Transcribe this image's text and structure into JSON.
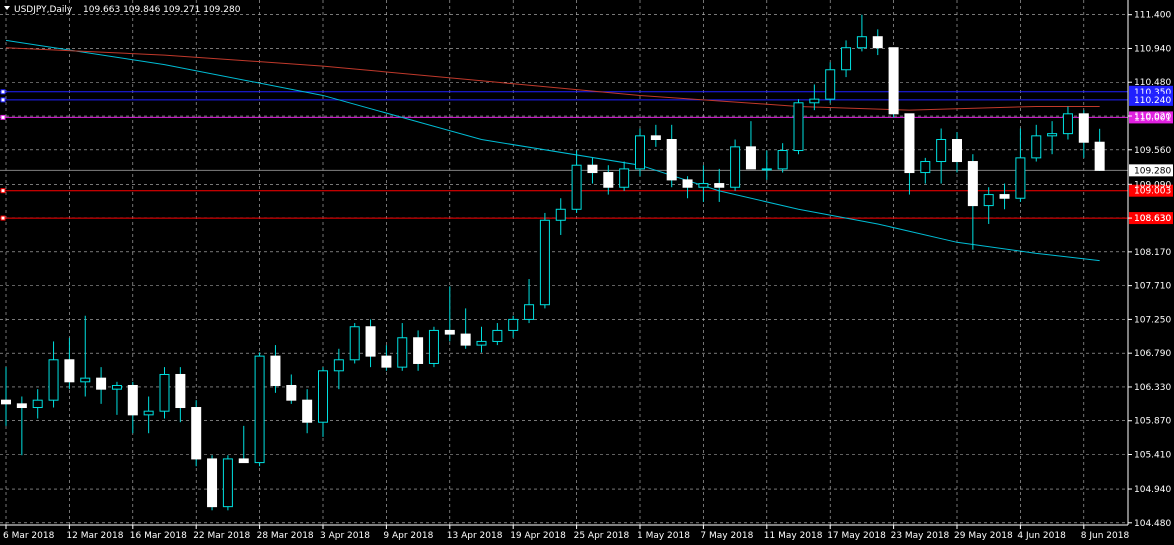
{
  "header": {
    "symbol": "USDJPY,Daily",
    "ohlc": "109.663 109.846 109.271 109.280"
  },
  "colors": {
    "background": "#000000",
    "grid": "#c0c0c0",
    "axis": "#ffffff",
    "bull_candle": "#000000",
    "bull_outline": "#00e0e0",
    "bear_candle": "#ffffff",
    "wick": "#00e0e0",
    "ma_slow": "#00bcd4",
    "ma_fast": "#c0392b",
    "level_red": "#ff0000",
    "level_magenta": "#e020e0",
    "level_blue": "#2020ff",
    "current_price_line": "#808080"
  },
  "chart_data": {
    "type": "candlestick",
    "title": "USDJPY,Daily",
    "ylim": [
      104.45,
      111.6
    ],
    "y_ticks": [
      "111.400",
      "110.940",
      "110.480",
      "110.020",
      "109.560",
      "109.090",
      "108.630",
      "108.170",
      "107.710",
      "107.250",
      "106.790",
      "106.330",
      "105.870",
      "105.410",
      "104.940",
      "104.480"
    ],
    "x_tick_labels": [
      "6 Mar 2018",
      "12 Mar 2018",
      "16 Mar 2018",
      "22 Mar 2018",
      "28 Mar 2018",
      "3 Apr 2018",
      "9 Apr 2018",
      "13 Apr 2018",
      "19 Apr 2018",
      "25 Apr 2018",
      "1 May 2018",
      "7 May 2018",
      "11 May 2018",
      "17 May 2018",
      "23 May 2018",
      "29 May 2018",
      "4 Jun 2018",
      "8 Jun 2018"
    ],
    "candles": [
      {
        "o": 106.15,
        "h": 106.6,
        "l": 105.8,
        "c": 106.1
      },
      {
        "o": 106.1,
        "h": 106.2,
        "l": 105.4,
        "c": 106.05
      },
      {
        "o": 106.05,
        "h": 106.3,
        "l": 105.9,
        "c": 106.15
      },
      {
        "o": 106.15,
        "h": 106.95,
        "l": 106.05,
        "c": 106.7
      },
      {
        "o": 106.7,
        "h": 107.0,
        "l": 106.3,
        "c": 106.4
      },
      {
        "o": 106.4,
        "h": 107.3,
        "l": 106.2,
        "c": 106.45
      },
      {
        "o": 106.45,
        "h": 106.6,
        "l": 106.1,
        "c": 106.3
      },
      {
        "o": 106.3,
        "h": 106.4,
        "l": 105.95,
        "c": 106.35
      },
      {
        "o": 106.35,
        "h": 106.4,
        "l": 105.7,
        "c": 105.95
      },
      {
        "o": 105.95,
        "h": 106.2,
        "l": 105.7,
        "c": 106.0
      },
      {
        "o": 106.0,
        "h": 106.6,
        "l": 105.9,
        "c": 106.5
      },
      {
        "o": 106.5,
        "h": 106.6,
        "l": 105.85,
        "c": 106.05
      },
      {
        "o": 106.05,
        "h": 106.15,
        "l": 105.25,
        "c": 105.35
      },
      {
        "o": 105.35,
        "h": 105.4,
        "l": 104.65,
        "c": 104.7
      },
      {
        "o": 104.7,
        "h": 105.4,
        "l": 104.65,
        "c": 105.35
      },
      {
        "o": 105.35,
        "h": 105.8,
        "l": 105.3,
        "c": 105.3
      },
      {
        "o": 105.3,
        "h": 106.8,
        "l": 105.25,
        "c": 106.75
      },
      {
        "o": 106.75,
        "h": 106.9,
        "l": 106.25,
        "c": 106.35
      },
      {
        "o": 106.35,
        "h": 106.5,
        "l": 106.1,
        "c": 106.15
      },
      {
        "o": 106.15,
        "h": 106.3,
        "l": 105.7,
        "c": 105.85
      },
      {
        "o": 105.85,
        "h": 106.6,
        "l": 105.65,
        "c": 106.55
      },
      {
        "o": 106.55,
        "h": 106.85,
        "l": 106.3,
        "c": 106.7
      },
      {
        "o": 106.7,
        "h": 107.2,
        "l": 106.65,
        "c": 107.15
      },
      {
        "o": 107.15,
        "h": 107.25,
        "l": 106.6,
        "c": 106.75
      },
      {
        "o": 106.75,
        "h": 106.9,
        "l": 106.55,
        "c": 106.6
      },
      {
        "o": 106.6,
        "h": 107.2,
        "l": 106.55,
        "c": 107.0
      },
      {
        "o": 107.0,
        "h": 107.1,
        "l": 106.55,
        "c": 106.65
      },
      {
        "o": 106.65,
        "h": 107.15,
        "l": 106.6,
        "c": 107.1
      },
      {
        "o": 107.1,
        "h": 107.7,
        "l": 106.95,
        "c": 107.05
      },
      {
        "o": 107.05,
        "h": 107.4,
        "l": 106.85,
        "c": 106.9
      },
      {
        "o": 106.9,
        "h": 107.15,
        "l": 106.8,
        "c": 106.95
      },
      {
        "o": 106.95,
        "h": 107.2,
        "l": 106.9,
        "c": 107.1
      },
      {
        "o": 107.1,
        "h": 107.3,
        "l": 107.0,
        "c": 107.25
      },
      {
        "o": 107.25,
        "h": 107.8,
        "l": 107.2,
        "c": 107.45
      },
      {
        "o": 107.45,
        "h": 108.7,
        "l": 107.4,
        "c": 108.6
      },
      {
        "o": 108.6,
        "h": 108.9,
        "l": 108.4,
        "c": 108.75
      },
      {
        "o": 108.75,
        "h": 109.55,
        "l": 108.7,
        "c": 109.35
      },
      {
        "o": 109.35,
        "h": 109.45,
        "l": 109.1,
        "c": 109.25
      },
      {
        "o": 109.25,
        "h": 109.35,
        "l": 108.95,
        "c": 109.05
      },
      {
        "o": 109.05,
        "h": 109.4,
        "l": 109.0,
        "c": 109.3
      },
      {
        "o": 109.3,
        "h": 109.85,
        "l": 109.2,
        "c": 109.75
      },
      {
        "o": 109.75,
        "h": 109.9,
        "l": 109.6,
        "c": 109.7
      },
      {
        "o": 109.7,
        "h": 109.9,
        "l": 109.05,
        "c": 109.15
      },
      {
        "o": 109.15,
        "h": 109.2,
        "l": 108.9,
        "c": 109.05
      },
      {
        "o": 109.05,
        "h": 109.35,
        "l": 108.85,
        "c": 109.1
      },
      {
        "o": 109.1,
        "h": 109.3,
        "l": 108.85,
        "c": 109.05
      },
      {
        "o": 109.05,
        "h": 109.7,
        "l": 109.0,
        "c": 109.6
      },
      {
        "o": 109.6,
        "h": 109.95,
        "l": 109.3,
        "c": 109.3
      },
      {
        "o": 109.3,
        "h": 109.55,
        "l": 109.15,
        "c": 109.3
      },
      {
        "o": 109.3,
        "h": 109.65,
        "l": 109.25,
        "c": 109.55
      },
      {
        "o": 109.55,
        "h": 110.25,
        "l": 109.5,
        "c": 110.2
      },
      {
        "o": 110.2,
        "h": 110.45,
        "l": 110.1,
        "c": 110.25
      },
      {
        "o": 110.25,
        "h": 110.75,
        "l": 110.2,
        "c": 110.65
      },
      {
        "o": 110.65,
        "h": 111.05,
        "l": 110.55,
        "c": 110.95
      },
      {
        "o": 110.95,
        "h": 111.4,
        "l": 110.9,
        "c": 111.1
      },
      {
        "o": 111.1,
        "h": 111.2,
        "l": 110.85,
        "c": 110.95
      },
      {
        "o": 110.95,
        "h": 110.95,
        "l": 110.0,
        "c": 110.05
      },
      {
        "o": 110.05,
        "h": 110.05,
        "l": 108.95,
        "c": 109.25
      },
      {
        "o": 109.25,
        "h": 109.45,
        "l": 109.1,
        "c": 109.4
      },
      {
        "o": 109.4,
        "h": 109.85,
        "l": 109.1,
        "c": 109.7
      },
      {
        "o": 109.7,
        "h": 109.8,
        "l": 109.25,
        "c": 109.4
      },
      {
        "o": 109.4,
        "h": 109.5,
        "l": 108.2,
        "c": 108.8
      },
      {
        "o": 108.8,
        "h": 109.05,
        "l": 108.55,
        "c": 108.95
      },
      {
        "o": 108.95,
        "h": 109.1,
        "l": 108.75,
        "c": 108.9
      },
      {
        "o": 108.9,
        "h": 109.85,
        "l": 108.85,
        "c": 109.45
      },
      {
        "o": 109.45,
        "h": 109.9,
        "l": 109.4,
        "c": 109.75
      },
      {
        "o": 109.75,
        "h": 109.95,
        "l": 109.5,
        "c": 109.78
      },
      {
        "o": 109.78,
        "h": 110.15,
        "l": 109.7,
        "c": 110.05
      },
      {
        "o": 110.05,
        "h": 110.1,
        "l": 109.45,
        "c": 109.663
      },
      {
        "o": 109.663,
        "h": 109.846,
        "l": 109.271,
        "c": 109.28
      }
    ],
    "ma_slow": [
      [
        0,
        111.05
      ],
      [
        10,
        110.72
      ],
      [
        20,
        110.3
      ],
      [
        30,
        109.7
      ],
      [
        40,
        109.35
      ],
      [
        45,
        109.0
      ],
      [
        50,
        108.75
      ],
      [
        55,
        108.55
      ],
      [
        60,
        108.3
      ],
      [
        65,
        108.15
      ],
      [
        69,
        108.05
      ]
    ],
    "ma_fast": [
      [
        0,
        110.95
      ],
      [
        10,
        110.85
      ],
      [
        20,
        110.7
      ],
      [
        30,
        110.5
      ],
      [
        40,
        110.3
      ],
      [
        50,
        110.15
      ],
      [
        57,
        110.1
      ],
      [
        65,
        110.15
      ],
      [
        69,
        110.15
      ]
    ],
    "levels": [
      {
        "price": 110.35,
        "label": "110.350",
        "color": "#2020ff"
      },
      {
        "price": 110.24,
        "label": "110.240",
        "color": "#2020ff"
      },
      {
        "price": 110.001,
        "label": "110.001",
        "color": "#e020e0"
      },
      {
        "price": 109.003,
        "label": "109.003",
        "color": "#ff0000"
      },
      {
        "price": 108.63,
        "label": "108.630",
        "color": "#ff0000"
      }
    ],
    "current_price": 109.28,
    "current_price_label": "109.280",
    "grid": true
  }
}
